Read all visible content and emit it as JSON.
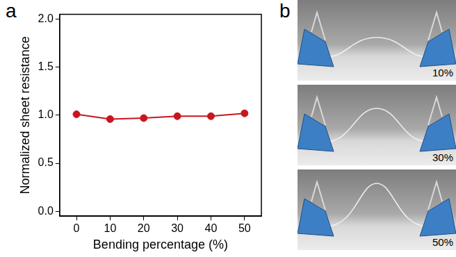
{
  "panel_label": "a",
  "chart_data": {
    "type": "line",
    "x": [
      0,
      10,
      20,
      30,
      40,
      50
    ],
    "values": [
      1.01,
      0.96,
      0.97,
      0.99,
      0.99,
      1.02
    ],
    "color": "#c8161d",
    "marker": "circle",
    "line_style": "solid",
    "x_label": "Bending percentage (%)",
    "y_label": "Normalized sheet resistance",
    "xlim": [
      -5,
      55
    ],
    "xticks": [
      0,
      10,
      20,
      30,
      40,
      50
    ],
    "ylim": [
      -0.05,
      2.05
    ],
    "yticks": [
      {
        "value": 0,
        "label": "0.0"
      },
      {
        "value": 0.5,
        "label": "0.5"
      },
      {
        "value": 1,
        "label": "1.0"
      },
      {
        "value": 1.5,
        "label": "1.5"
      },
      {
        "value": 2,
        "label": "2.0"
      }
    ],
    "grid": false
  },
  "photo_panel": {
    "label": "b",
    "photos": [
      {
        "caption": "10%"
      },
      {
        "caption": "30%"
      },
      {
        "caption": "50%"
      }
    ]
  }
}
